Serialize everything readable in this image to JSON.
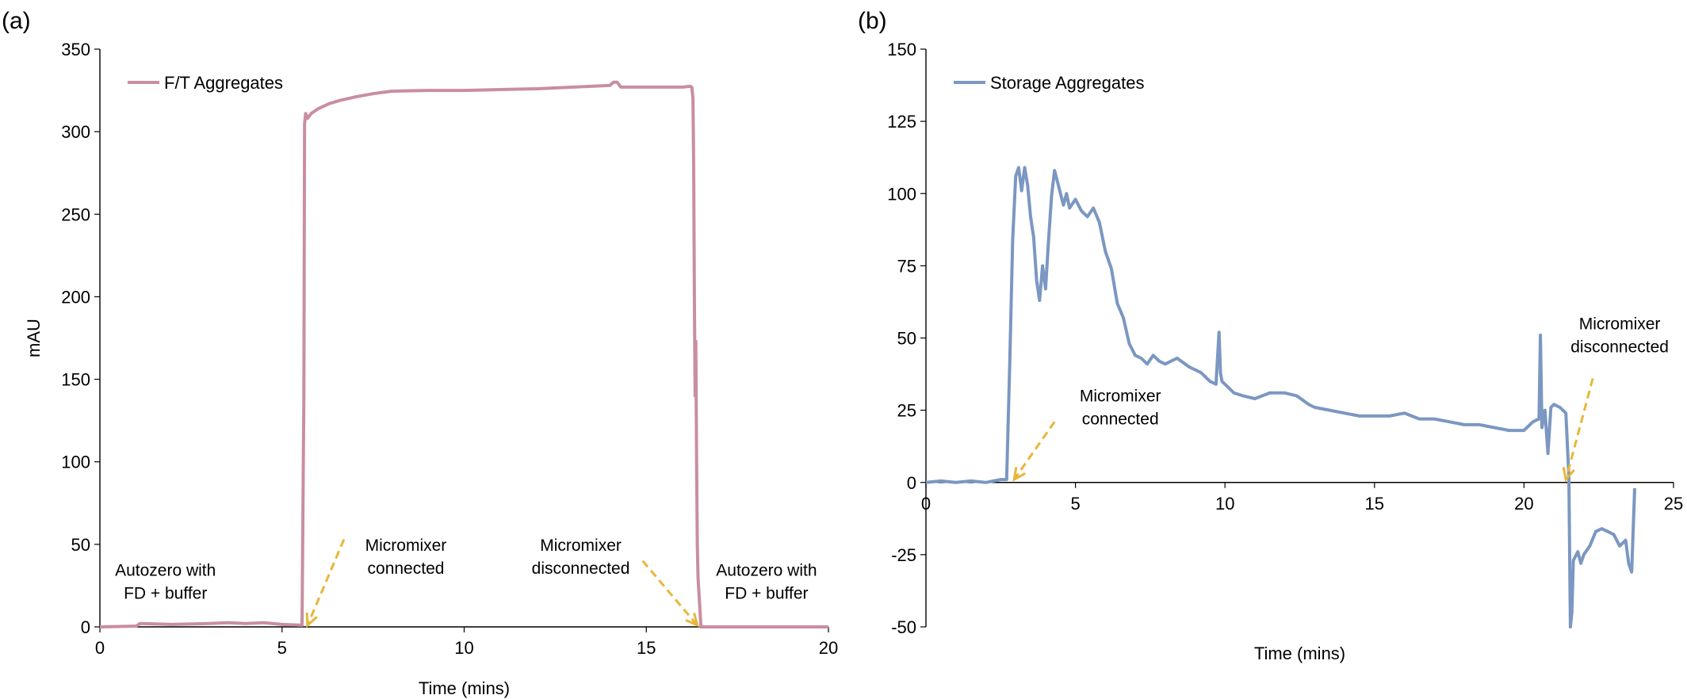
{
  "chart_data": [
    {
      "panel_label": "(a)",
      "type": "line",
      "xlabel": "Time (mins)",
      "ylabel": "mAU",
      "xlim": [
        0,
        20
      ],
      "ylim": [
        0,
        350
      ],
      "x_ticks": [
        "0",
        "5",
        "10",
        "15",
        "20"
      ],
      "y_ticks": [
        "0",
        "50",
        "100",
        "150",
        "200",
        "250",
        "300",
        "350"
      ],
      "grid": false,
      "legend_position": "top-left",
      "series": [
        {
          "name": "F/T Aggregates",
          "color": "#c98ea0",
          "x": [
            0,
            1,
            1.1,
            2,
            3,
            3.5,
            4,
            4.5,
            5,
            5.55,
            5.6,
            5.62,
            5.65,
            5.7,
            5.8,
            6.0,
            6.3,
            6.6,
            7.0,
            7.5,
            8.0,
            9.0,
            10.0,
            11.0,
            12.0,
            13.0,
            14.0,
            14.1,
            14.2,
            14.3,
            14.4,
            15.0,
            16.0,
            16.2,
            16.25,
            16.28,
            16.3,
            16.32,
            16.34,
            16.36,
            16.38,
            16.4,
            16.42,
            16.5,
            17,
            20
          ],
          "y": [
            0,
            0.5,
            2,
            1.5,
            2,
            2.5,
            2,
            2.5,
            1.5,
            1,
            140,
            305,
            311,
            308,
            311,
            314,
            317,
            319,
            321,
            323,
            324.5,
            325,
            325,
            325.5,
            326,
            327,
            328,
            330,
            330,
            327,
            327,
            327,
            327,
            327.5,
            327,
            320,
            280,
            200,
            140,
            173,
            100,
            50,
            30,
            0,
            0,
            0
          ]
        }
      ],
      "annotations": [
        {
          "lines": [
            "Autozero with",
            "FD + buffer"
          ],
          "x": 1.8,
          "y": 31
        },
        {
          "lines": [
            "Micromixer",
            "connected"
          ],
          "x": 8.4,
          "y": 46
        },
        {
          "lines": [
            "Micromixer",
            "disconnected"
          ],
          "x": 13.2,
          "y": 46
        },
        {
          "lines": [
            "Autozero with",
            "FD + buffer"
          ],
          "x": 18.3,
          "y": 31
        }
      ],
      "arrows": [
        {
          "from": [
            6.7,
            53
          ],
          "to": [
            5.7,
            1
          ]
        },
        {
          "from": [
            14.9,
            40
          ],
          "to": [
            16.4,
            1
          ]
        }
      ]
    },
    {
      "panel_label": "(b)",
      "type": "line",
      "xlabel": "Time (mins)",
      "ylabel": "",
      "xlim": [
        0,
        25
      ],
      "ylim": [
        -50,
        150
      ],
      "x_ticks": [
        "0",
        "5",
        "10",
        "15",
        "20",
        "25"
      ],
      "y_ticks": [
        "-50",
        "-25",
        "0",
        "25",
        "50",
        "75",
        "100",
        "125",
        "150"
      ],
      "grid": false,
      "legend_position": "top-left",
      "series": [
        {
          "name": "Storage Aggregates",
          "color": "#7b97c2",
          "x": [
            0,
            0.5,
            1,
            1.5,
            2,
            2.5,
            2.7,
            2.8,
            2.9,
            3.0,
            3.1,
            3.2,
            3.3,
            3.4,
            3.5,
            3.6,
            3.7,
            3.8,
            3.9,
            4.0,
            4.1,
            4.2,
            4.3,
            4.4,
            4.5,
            4.6,
            4.7,
            4.8,
            5.0,
            5.2,
            5.4,
            5.6,
            5.8,
            6.0,
            6.2,
            6.4,
            6.6,
            6.8,
            7.0,
            7.2,
            7.4,
            7.6,
            7.8,
            8.0,
            8.4,
            8.8,
            9.2,
            9.5,
            9.7,
            9.8,
            9.85,
            9.9,
            10.0,
            10.3,
            10.6,
            11.0,
            11.5,
            12.0,
            12.4,
            12.8,
            13.0,
            13.5,
            14.0,
            14.5,
            15.0,
            15.5,
            16.0,
            16.5,
            17.0,
            17.5,
            18.0,
            18.5,
            19.0,
            19.5,
            20.0,
            20.3,
            20.5,
            20.55,
            20.6,
            20.7,
            20.8,
            20.9,
            21.0,
            21.2,
            21.4,
            21.5,
            21.55,
            21.6,
            21.65,
            21.7,
            21.8,
            21.9,
            22.0,
            22.2,
            22.4,
            22.6,
            22.8,
            23.0,
            23.2,
            23.4,
            23.5,
            23.6,
            23.7
          ],
          "y": [
            0,
            0.5,
            0,
            0.5,
            0,
            1,
            1,
            40,
            84,
            106,
            109,
            101,
            109,
            103,
            92,
            85,
            70,
            63,
            75,
            67,
            84,
            99,
            108,
            104,
            100,
            96,
            100,
            95,
            98,
            94,
            92,
            95,
            90,
            80,
            74,
            62,
            57,
            48,
            44,
            43,
            41,
            44,
            42,
            41,
            43,
            40,
            38,
            35,
            34,
            52,
            38,
            35,
            34,
            31,
            30,
            29,
            31,
            31,
            30,
            27,
            26,
            25,
            24,
            23,
            23,
            23,
            24,
            22,
            22,
            21,
            20,
            20,
            19,
            18,
            18,
            21,
            22,
            51,
            19,
            25,
            10,
            26,
            27,
            26,
            24,
            2,
            -50,
            -45,
            -27,
            -26,
            -24,
            -28,
            -25,
            -22,
            -17,
            -16,
            -17,
            -18,
            -22,
            -20,
            -28,
            -31,
            -2
          ]
        }
      ],
      "annotations": [
        {
          "lines": [
            "Micromixer",
            "connected"
          ],
          "x": 6.5,
          "y": 28
        },
        {
          "lines": [
            "Micromixer",
            "disconnected"
          ],
          "x": 23.2,
          "y": 53
        }
      ],
      "arrows": [
        {
          "from": [
            4.3,
            21
          ],
          "to": [
            2.95,
            1
          ]
        },
        {
          "from": [
            22.3,
            36
          ],
          "to": [
            21.4,
            1
          ]
        }
      ]
    }
  ]
}
